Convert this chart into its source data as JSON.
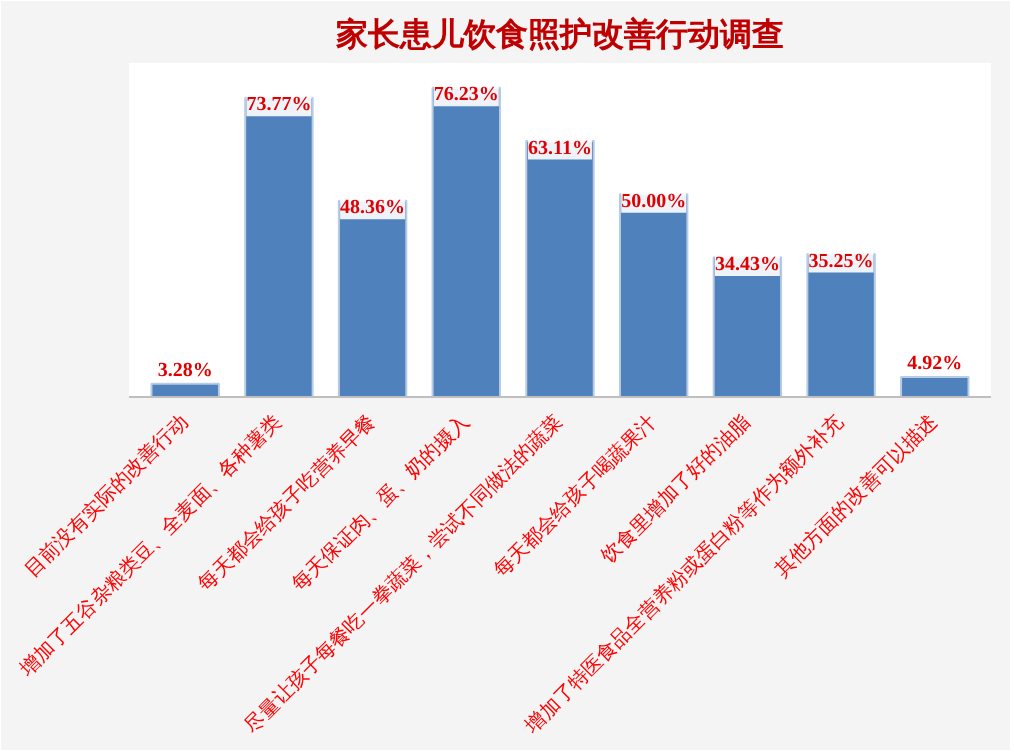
{
  "chart_data": {
    "type": "bar",
    "title": "家长患儿饮食照护改善行动调查",
    "categories": [
      "目前没有实际的改善行动",
      "增加了五谷杂粮类豆、全麦面、各种薯类",
      "每天都会给孩子吃营养早餐",
      "每天保证肉、蛋、奶的摄入",
      "尽量让孩子每餐吃一拳蔬菜，尝试不同做法的蔬菜",
      "每天都会给孩子喝蔬果汁",
      "饮食里增加了好的油脂",
      "增加了特医食品全营养粉或蛋白粉等作为额外补充",
      "其他方面的改善可以描述"
    ],
    "values": [
      3.28,
      73.77,
      48.36,
      76.23,
      63.11,
      50.0,
      34.43,
      35.25,
      4.92
    ],
    "value_labels": [
      "3.28%",
      "73.77%",
      "48.36%",
      "76.23%",
      "63.11%",
      "50.00%",
      "34.43%",
      "35.25%",
      "4.92%"
    ],
    "color": "#4f81bd",
    "tick_labels": "x",
    "grid": false
  }
}
